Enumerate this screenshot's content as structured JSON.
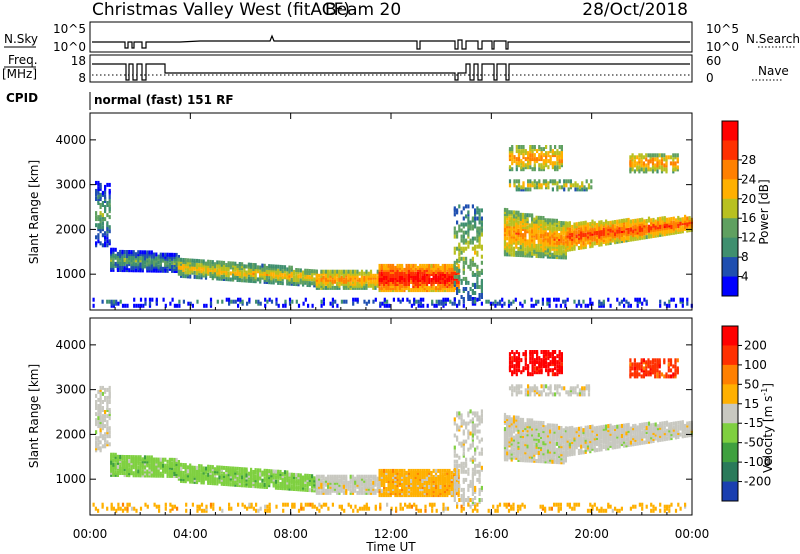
{
  "header": {
    "station_title": "Christmas Valley West (fitACF)",
    "beam": "Beam 20",
    "date": "28/Oct/2018"
  },
  "strip_labels": {
    "nsky": "N.Sky",
    "nsearch": "N.Search",
    "freq": "Freq.",
    "freq_unit": "[MHz]",
    "nave": "Nave",
    "cpid": "CPID",
    "cpid_value": "normal (fast) 151 RF",
    "nsky_ticks": [
      "10^5",
      "10^0"
    ],
    "nsearch_ticks": [
      "10^5",
      "10^0"
    ],
    "freq_ticks": [
      "18",
      "8"
    ],
    "nave_ticks": [
      "60",
      "0"
    ]
  },
  "chart_data": [
    {
      "type": "heatmap",
      "panel": "power",
      "ylabel": "Slant Range [km]",
      "yticks": [
        1000,
        2000,
        3000,
        4000
      ],
      "ylim": [
        200,
        4600
      ],
      "colorbar_label": "Power [dB]",
      "colorbar_ticks": [
        "4",
        "8",
        "12",
        "16",
        "20",
        "24",
        "28"
      ],
      "colorbar_colors": [
        "#0000ff",
        "#1f4fb0",
        "#3f8f6f",
        "#5fa060",
        "#b8c020",
        "#ffb000",
        "#ff8000",
        "#ff3000",
        "#ff0000"
      ]
    },
    {
      "type": "heatmap",
      "panel": "velocity",
      "ylabel": "Slant Range [km]",
      "yticks": [
        1000,
        2000,
        3000,
        4000
      ],
      "ylim": [
        200,
        4600
      ],
      "colorbar_label": "Velocity [m s",
      "colorbar_label_sup": "-1",
      "colorbar_label_end": "]",
      "colorbar_ticks": [
        "200",
        "100",
        "50",
        "15",
        "-15",
        "-50",
        "-100",
        "-200"
      ],
      "colorbar_colors": [
        "#1a3fb0",
        "#2a7a5a",
        "#3fa03f",
        "#7fd040",
        "#c8c8c0",
        "#ffb000",
        "#ff8000",
        "#ff3000",
        "#ff0000"
      ]
    }
  ],
  "xaxis": {
    "label": "Time UT",
    "ticks": [
      "00:00",
      "04:00",
      "08:00",
      "12:00",
      "16:00",
      "20:00",
      "00:00"
    ]
  }
}
